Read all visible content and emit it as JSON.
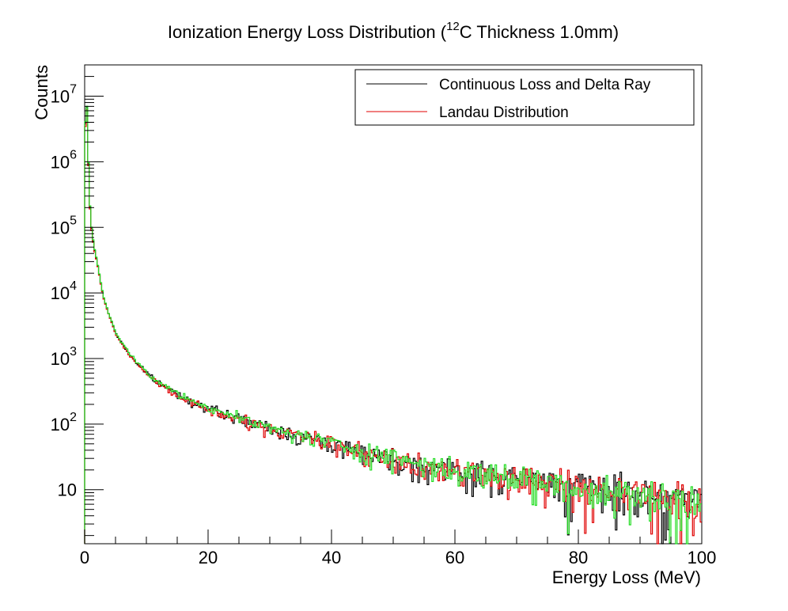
{
  "chart_data": {
    "type": "line",
    "style": "step-histogram",
    "title_main": "Ionization Energy Loss Distribution (",
    "title_sup": "12",
    "title_rest": "C Thickness 1.0mm)",
    "xlabel": "Energy Loss (MeV)",
    "ylabel": "Counts",
    "xlim": [
      0,
      100
    ],
    "ylim": [
      1.5,
      30000000
    ],
    "yscale": "log",
    "x_ticks": [
      {
        "value": 0,
        "label": "0"
      },
      {
        "value": 20,
        "label": "20"
      },
      {
        "value": 40,
        "label": "40"
      },
      {
        "value": 60,
        "label": "60"
      },
      {
        "value": 80,
        "label": "80"
      },
      {
        "value": 100,
        "label": "100"
      }
    ],
    "y_ticks": [
      {
        "value": 10,
        "base": "10",
        "exp": ""
      },
      {
        "value": 100,
        "base": "10",
        "exp": "2"
      },
      {
        "value": 1000,
        "base": "10",
        "exp": "3"
      },
      {
        "value": 10000,
        "base": "10",
        "exp": "4"
      },
      {
        "value": 100000,
        "base": "10",
        "exp": "5"
      },
      {
        "value": 1000000,
        "base": "10",
        "exp": "6"
      },
      {
        "value": 10000000,
        "base": "10",
        "exp": "7"
      }
    ],
    "legend": {
      "position": "top-right",
      "entries": [
        {
          "label": "Continuous Loss and Delta Ray",
          "color": "#000000"
        },
        {
          "label": "Landau Distribution",
          "color": "#e00000"
        }
      ]
    },
    "series": [
      {
        "color": "#000000",
        "x": [
          0,
          0.25,
          0.5,
          0.75,
          1,
          1.5,
          2,
          3,
          4,
          5,
          6,
          8,
          10,
          12,
          15,
          20,
          25,
          30,
          35,
          40,
          50,
          60,
          70,
          80,
          90,
          100
        ],
        "y": [
          800000,
          18000000,
          2500000,
          350000,
          120000,
          50000,
          30000,
          9000,
          4500,
          2500,
          1700,
          950,
          600,
          420,
          290,
          170,
          120,
          85,
          65,
          50,
          30,
          19,
          15,
          11,
          9,
          7
        ]
      },
      {
        "color": "#e00000",
        "x": [
          0,
          0.25,
          0.5,
          0.75,
          1,
          1.5,
          2,
          3,
          4,
          5,
          6,
          8,
          10,
          12,
          15,
          20,
          25,
          30,
          35,
          40,
          50,
          60,
          70,
          80,
          90,
          100
        ],
        "y": [
          700000,
          17000000,
          2300000,
          330000,
          110000,
          48000,
          29000,
          8800,
          4400,
          2450,
          1650,
          930,
          590,
          410,
          285,
          168,
          118,
          84,
          64,
          49,
          29,
          18.5,
          14.5,
          10.5,
          8.5,
          7
        ]
      },
      {
        "color": "#22dd22",
        "x": [
          0,
          0.25,
          0.5,
          0.75,
          1,
          1.5,
          2,
          3,
          4,
          5,
          6,
          8,
          10,
          12,
          15,
          20,
          25,
          30,
          35,
          40,
          50,
          60,
          70,
          80,
          90,
          100
        ],
        "y": [
          900000,
          19000000,
          2600000,
          360000,
          125000,
          52000,
          31000,
          9200,
          4600,
          2550,
          1750,
          970,
          610,
          430,
          295,
          172,
          122,
          86,
          66,
          51,
          31,
          19.5,
          15.5,
          11,
          8,
          6
        ]
      }
    ]
  }
}
